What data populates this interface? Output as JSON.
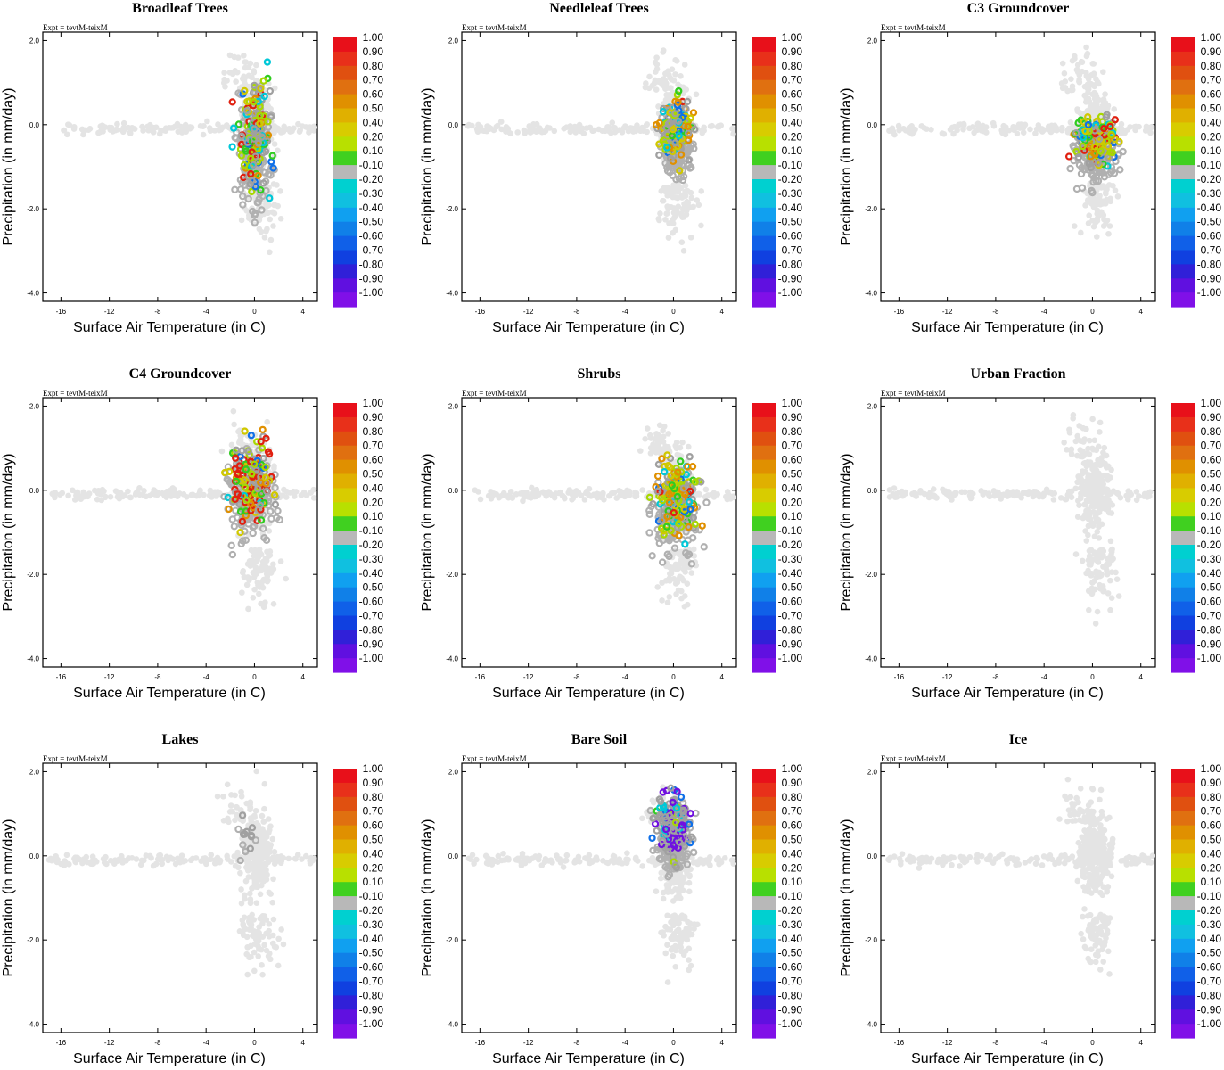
{
  "chart_data": [
    {
      "type": "scatter",
      "title": "Broadleaf Trees",
      "expt": "Expt = tevtM-teixM",
      "xlabel": "Surface Air Temperature (in C)",
      "ylabel": "Precipitation (in mm/day)",
      "xlim": [
        -17.5,
        5.2
      ],
      "ylim": [
        -4.2,
        2.2
      ],
      "xticks": [
        "-16",
        "-12",
        "-8",
        "-4",
        "0",
        "4"
      ],
      "yticks": [
        "2.0",
        "0.0",
        "-2.0",
        "-4.0"
      ],
      "colored_region": {
        "x": [
          -2.5,
          2.5
        ],
        "y": [
          -2.7,
          2.2
        ]
      },
      "mix": [
        0.08,
        0.05,
        0.08,
        0.22,
        0.07,
        0.1,
        0.1,
        0.3,
        0.0
      ],
      "seed": 11
    },
    {
      "type": "scatter",
      "title": "Needleleaf Trees",
      "expt": "Expt = tevtM-teixM",
      "xlabel": "Surface Air Temperature (in C)",
      "ylabel": "Precipitation (in mm/day)",
      "xlim": [
        -17.5,
        5.2
      ],
      "ylim": [
        -4.2,
        2.2
      ],
      "xticks": [
        "-16",
        "-12",
        "-8",
        "-4",
        "0",
        "4"
      ],
      "yticks": [
        "2.0",
        "0.0",
        "-2.0",
        "-4.0"
      ],
      "colored_region": {
        "x": [
          -2.0,
          2.5
        ],
        "y": [
          -1.5,
          1.3
        ]
      },
      "mix": [
        0.02,
        0.1,
        0.18,
        0.2,
        0.05,
        0.08,
        0.04,
        0.33,
        0.0
      ],
      "seed": 23
    },
    {
      "type": "scatter",
      "title": "C3 Groundcover",
      "expt": "Expt = tevtM-teixM",
      "xlabel": "Surface Air Temperature (in C)",
      "ylabel": "Precipitation (in mm/day)",
      "xlim": [
        -17.5,
        5.2
      ],
      "ylim": [
        -4.2,
        2.2
      ],
      "xticks": [
        "-16",
        "-12",
        "-8",
        "-4",
        "0",
        "4"
      ],
      "yticks": [
        "2.0",
        "0.0",
        "-2.0",
        "-4.0"
      ],
      "colored_region": {
        "x": [
          -3.0,
          3.5
        ],
        "y": [
          -1.5,
          0.8
        ]
      },
      "mix": [
        0.05,
        0.1,
        0.18,
        0.2,
        0.08,
        0.06,
        0.04,
        0.29,
        0.0
      ],
      "seed": 37
    },
    {
      "type": "scatter",
      "title": "C4 Groundcover",
      "expt": "Expt = tevtM-teixM",
      "xlabel": "Surface Air Temperature (in C)",
      "ylabel": "Precipitation (in mm/day)",
      "xlim": [
        -17.5,
        5.2
      ],
      "ylim": [
        -4.2,
        2.2
      ],
      "xticks": [
        "-16",
        "-12",
        "-8",
        "-4",
        "0",
        "4"
      ],
      "yticks": [
        "2.0",
        "0.0",
        "-2.0",
        "-4.0"
      ],
      "colored_region": {
        "x": [
          -3.5,
          3.0
        ],
        "y": [
          -1.6,
          2.0
        ]
      },
      "mix": [
        0.3,
        0.12,
        0.1,
        0.12,
        0.04,
        0.05,
        0.05,
        0.22,
        0.0
      ],
      "seed": 41
    },
    {
      "type": "scatter",
      "title": "Shrubs",
      "expt": "Expt = tevtM-teixM",
      "xlabel": "Surface Air Temperature (in C)",
      "ylabel": "Precipitation (in mm/day)",
      "xlim": [
        -17.5,
        5.2
      ],
      "ylim": [
        -4.2,
        2.2
      ],
      "xticks": [
        "-16",
        "-12",
        "-8",
        "-4",
        "0",
        "4"
      ],
      "yticks": [
        "2.0",
        "0.0",
        "-2.0",
        "-4.0"
      ],
      "colored_region": {
        "x": [
          -3.0,
          3.5
        ],
        "y": [
          -1.8,
          1.5
        ]
      },
      "mix": [
        0.03,
        0.2,
        0.15,
        0.18,
        0.1,
        0.06,
        0.04,
        0.24,
        0.0
      ],
      "seed": 53
    },
    {
      "type": "scatter",
      "title": "Urban Fraction",
      "expt": "Expt = tevtM-teixM",
      "xlabel": "Surface Air Temperature (in C)",
      "ylabel": "Precipitation (in mm/day)",
      "xlim": [
        -17.5,
        5.2
      ],
      "ylim": [
        -4.2,
        2.2
      ],
      "xticks": [
        "-16",
        "-12",
        "-8",
        "-4",
        "0",
        "4"
      ],
      "yticks": [
        "2.0",
        "0.0",
        "-2.0",
        "-4.0"
      ],
      "colored_region": null,
      "mix": [
        0,
        0,
        0,
        0,
        0,
        0,
        0,
        0,
        0
      ],
      "seed": 61
    },
    {
      "type": "scatter",
      "title": "Lakes",
      "expt": "Expt = tevtM-teixM",
      "xlabel": "Surface Air Temperature (in C)",
      "ylabel": "Precipitation (in mm/day)",
      "xlim": [
        -17.5,
        5.2
      ],
      "ylim": [
        -4.2,
        2.2
      ],
      "xticks": [
        "-16",
        "-12",
        "-8",
        "-4",
        "0",
        "4"
      ],
      "yticks": [
        "2.0",
        "0.0",
        "-2.0",
        "-4.0"
      ],
      "colored_region": {
        "x": [
          -2.0,
          1.0
        ],
        "y": [
          -0.3,
          1.5
        ]
      },
      "mix": [
        0,
        0,
        0,
        0,
        0,
        0,
        0,
        1.0,
        0.0
      ],
      "seed": 71,
      "colored_count": 8
    },
    {
      "type": "scatter",
      "title": "Bare Soil",
      "expt": "Expt = tevtM-teixM",
      "xlabel": "Surface Air Temperature (in C)",
      "ylabel": "Precipitation (in mm/day)",
      "xlim": [
        -17.5,
        5.2
      ],
      "ylim": [
        -4.2,
        2.2
      ],
      "xticks": [
        "-16",
        "-12",
        "-8",
        "-4",
        "0",
        "4"
      ],
      "yticks": [
        "2.0",
        "0.0",
        "-2.0",
        "-4.0"
      ],
      "colored_region": {
        "x": [
          -2.5,
          2.5
        ],
        "y": [
          -0.8,
          2.2
        ]
      },
      "mix": [
        0.0,
        0.0,
        0.0,
        0.04,
        0.03,
        0.12,
        0.1,
        0.41,
        0.3
      ],
      "seed": 83
    },
    {
      "type": "scatter",
      "title": "Ice",
      "expt": "Expt = tevtM-teixM",
      "xlabel": "Surface Air Temperature (in C)",
      "ylabel": "Precipitation (in mm/day)",
      "xlim": [
        -17.5,
        5.2
      ],
      "ylim": [
        -4.2,
        2.2
      ],
      "xticks": [
        "-16",
        "-12",
        "-8",
        "-4",
        "0",
        "4"
      ],
      "yticks": [
        "2.0",
        "0.0",
        "-2.0",
        "-4.0"
      ],
      "colored_region": null,
      "mix": [
        0,
        0,
        0,
        0,
        0,
        0,
        0,
        0,
        0
      ],
      "seed": 97
    }
  ],
  "colorbar": {
    "labels": [
      "1.00",
      "0.90",
      "0.80",
      "0.70",
      "0.60",
      "0.50",
      "0.40",
      "0.20",
      "0.10",
      "-0.10",
      "-0.20",
      "-0.30",
      "-0.40",
      "-0.50",
      "-0.60",
      "-0.70",
      "-0.80",
      "-0.90",
      "-1.00"
    ],
    "colors": [
      "#e8101a",
      "#e8301a",
      "#e05010",
      "#e07010",
      "#e09000",
      "#e0b000",
      "#d8cc00",
      "#b8e000",
      "#40d020",
      "#b8b8b8",
      "#00d0d0",
      "#10c0e0",
      "#10a0f0",
      "#1080e8",
      "#1060e8",
      "#1040e0",
      "#3020d8",
      "#6010e0",
      "#8010e8"
    ]
  },
  "palette": {
    "base_gray": "#e4e4e4",
    "mid_gray": "#b0b0b0",
    "categories": [
      "#e02010",
      "#e09000",
      "#d0c800",
      "#a8d800",
      "#30cc20",
      "#00c8d8",
      "#1070e8",
      "#a0a0a0",
      "#7010e0"
    ]
  }
}
